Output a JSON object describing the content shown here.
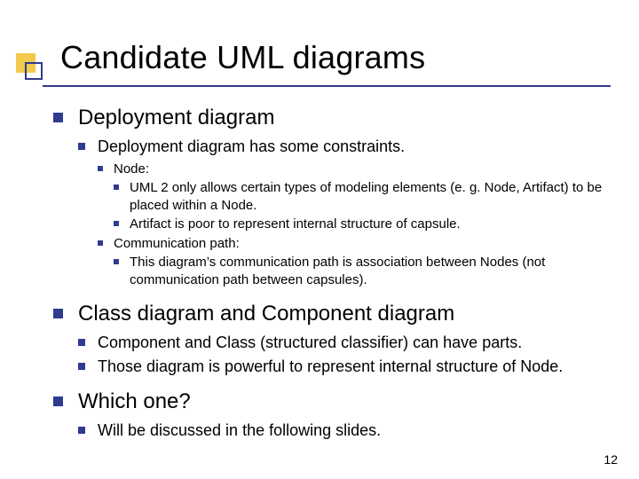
{
  "colors": {
    "accent_blue": "#2f3b8f",
    "accent_yellow": "#f2c94c",
    "text": "#000000",
    "background": "#ffffff"
  },
  "typography": {
    "title_fontsize": 36,
    "lvl1_fontsize": 24,
    "lvl2_fontsize": 18,
    "lvl3_fontsize": 15,
    "page_num_fontsize": 14,
    "font_family": "Arial"
  },
  "title": "Candidate UML diagrams",
  "page_number": "12",
  "bullets": {
    "lvl1": [
      {
        "text": "Deployment diagram",
        "children": [
          {
            "text": "Deployment diagram has some constraints.",
            "children": [
              {
                "text": "Node:",
                "children": [
                  {
                    "text": "UML 2 only allows certain types of modeling elements (e. g. Node, Artifact) to be placed within a Node."
                  },
                  {
                    "text": "Artifact is poor to represent internal structure of capsule."
                  }
                ]
              },
              {
                "text": "Communication path:",
                "children": [
                  {
                    "text": "This diagram’s communication path is association between Nodes (not communication path between capsules)."
                  }
                ]
              }
            ]
          }
        ]
      },
      {
        "text": "Class diagram and Component diagram",
        "children": [
          {
            "text": "Component and Class (structured classifier) can have parts."
          },
          {
            "text": "Those diagram is powerful to represent internal structure of Node."
          }
        ]
      },
      {
        "text": "Which one?",
        "children": [
          {
            "text": "Will be discussed in the following slides."
          }
        ]
      }
    ]
  }
}
